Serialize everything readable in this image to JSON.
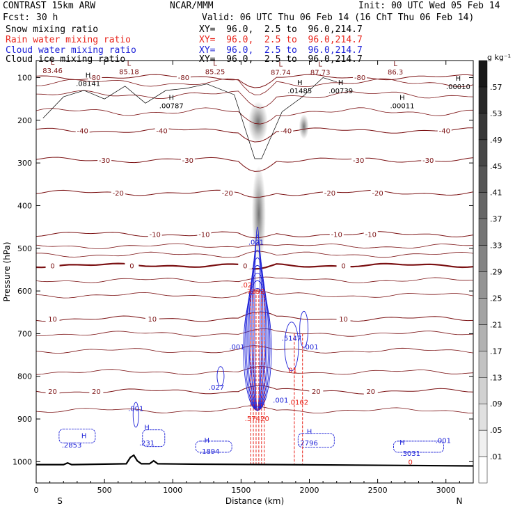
{
  "header": {
    "model": "CONTRAST 15km ARW",
    "org": "NCAR/MMM",
    "init": "Init: 00 UTC Wed 05 Feb 14",
    "fcst_label": "Fcst:",
    "fcst_value": "30 h",
    "valid": "Valid: 06 UTC Thu 06 Feb 14 (16 ChT Thu 06 Feb 14)"
  },
  "fields": [
    {
      "name": "Snow mixing ratio",
      "xy": "XY=  96.0,  2.5 to  96.0,214.7",
      "color": "#000000"
    },
    {
      "name": "Rain water mixing ratio",
      "xy": "XY=  96.0,  2.5 to  96.0,214.7",
      "color": "#e8251c"
    },
    {
      "name": "Cloud water mixing ratio",
      "xy": "XY=  96.0,  2.5 to  96.0,214.7",
      "color": "#1e22d8"
    },
    {
      "name": "Cloud ice mixing ratio",
      "xy": "XY=  96.0,  2.5 to  96.0,214.7",
      "color": "#000000"
    }
  ],
  "chart_data": {
    "type": "contour",
    "xlabel": "Distance (km)",
    "ylabel": "Pressure (hPa)",
    "xlim": [
      0,
      3200
    ],
    "ylim": [
      1050,
      60
    ],
    "xticks": [
      0,
      500,
      1000,
      1500,
      2000,
      2500,
      3000
    ],
    "yticks": [
      100,
      200,
      300,
      400,
      500,
      600,
      700,
      800,
      900,
      1000
    ],
    "x_end_labels": {
      "left": "S",
      "right": "N"
    },
    "colorbar": {
      "unit": "g kg⁻¹",
      "levels": [
        ".01",
        ".05",
        ".09",
        ".13",
        ".17",
        ".21",
        ".25",
        ".29",
        ".33",
        ".37",
        ".41",
        ".45",
        ".49",
        ".53",
        ".57"
      ]
    },
    "temperature_contours": [
      {
        "label": "20",
        "p": 835,
        "labels_at": [
          120,
          440,
          2050,
          2450
        ]
      },
      {
        "label": "10",
        "p": 665,
        "labels_at": [
          120,
          850,
          2250
        ]
      },
      {
        "label": "0",
        "p": 540,
        "labels_at": [
          120,
          700,
          1530,
          2250
        ]
      },
      {
        "label": "-10",
        "p": 467,
        "labels_at": [
          870,
          1230,
          2200,
          2450
        ]
      },
      {
        "label": "-20",
        "p": 370,
        "labels_at": [
          600,
          1400,
          2150,
          2500
        ]
      },
      {
        "label": "-30",
        "p": 293,
        "labels_at": [
          500,
          1110,
          2360,
          2870
        ]
      },
      {
        "label": "-40",
        "p": 224,
        "labels_at": [
          340,
          920,
          1830,
          2990
        ]
      },
      {
        "label": "-80",
        "p": 99,
        "labels_at": [
          430,
          1080,
          2370
        ]
      }
    ],
    "pressure_extrema": [
      {
        "type": "L",
        "x": 120,
        "p": 83,
        "value": "83.46"
      },
      {
        "type": "L",
        "x": 680,
        "p": 85,
        "value": "85.18"
      },
      {
        "type": "L",
        "x": 1310,
        "p": 85,
        "value": "85.25"
      },
      {
        "type": "L",
        "x": 1790,
        "p": 87,
        "value": "87.74"
      },
      {
        "type": "L",
        "x": 2080,
        "p": 87,
        "value": "87.73"
      },
      {
        "type": "L",
        "x": 2630,
        "p": 86,
        "value": "86.3"
      },
      {
        "type": "H",
        "x": 380,
        "p": 113,
        "value": ".08141"
      },
      {
        "type": "H",
        "x": 990,
        "p": 165,
        "value": ".00787"
      },
      {
        "type": "H",
        "x": 1930,
        "p": 130,
        "value": ".01485"
      },
      {
        "type": "H",
        "x": 2230,
        "p": 130,
        "value": ".00739"
      },
      {
        "type": "H",
        "x": 2680,
        "p": 165,
        "value": ".00011"
      },
      {
        "type": "H",
        "x": 3090,
        "p": 120,
        "value": ".00010"
      }
    ],
    "cloud_water_labels": [
      {
        "label": ".001",
        "x": 1610,
        "p": 485
      },
      {
        "label": ".001",
        "x": 1470,
        "p": 730
      },
      {
        "label": ".001",
        "x": 2010,
        "p": 730
      },
      {
        "label": ".5147",
        "x": 1870,
        "p": 710
      },
      {
        "label": ".027",
        "x": 1320,
        "p": 825
      },
      {
        "label": ".001",
        "x": 1790,
        "p": 855
      },
      {
        "label": ".001",
        "x": 730,
        "p": 875
      },
      {
        "label": ".2853",
        "x": 260,
        "p": 960
      },
      {
        "label": ".231",
        "x": 810,
        "p": 955
      },
      {
        "label": ".1894",
        "x": 1270,
        "p": 975
      },
      {
        "label": ".2796",
        "x": 1990,
        "p": 955
      },
      {
        "label": ".3031",
        "x": 2740,
        "p": 980
      },
      {
        "label": ".001",
        "x": 2980,
        "p": 950
      }
    ],
    "cloud_water_highs": [
      {
        "label": "H",
        "x": 350,
        "p": 945
      },
      {
        "label": "H",
        "x": 810,
        "p": 925
      },
      {
        "label": "H",
        "x": 1250,
        "p": 955
      },
      {
        "label": "H",
        "x": 2000,
        "p": 935
      },
      {
        "label": "H",
        "x": 2680,
        "p": 960
      }
    ],
    "rain_labels": [
      {
        "label": ".02",
        "x": 1540,
        "p": 585
      },
      {
        "label": ".7392",
        "x": 1600,
        "p": 600
      },
      {
        "label": ".01",
        "x": 1870,
        "p": 785
      },
      {
        "label": ".0162",
        "x": 1920,
        "p": 860
      },
      {
        "label": ".5742",
        "x": 1600,
        "p": 898
      },
      {
        "label": "0",
        "x": 1690,
        "p": 898
      },
      {
        "label": "0",
        "x": 2740,
        "p": 1000
      }
    ],
    "surface_pressure": [
      [
        0,
        1007
      ],
      [
        200,
        1007
      ],
      [
        230,
        1003
      ],
      [
        260,
        1007
      ],
      [
        660,
        1005
      ],
      [
        690,
        990
      ],
      [
        715,
        985
      ],
      [
        740,
        998
      ],
      [
        770,
        1005
      ],
      [
        830,
        1005
      ],
      [
        860,
        998
      ],
      [
        890,
        1005
      ],
      [
        1200,
        1006
      ],
      [
        1800,
        1007
      ],
      [
        3200,
        1010
      ]
    ]
  }
}
